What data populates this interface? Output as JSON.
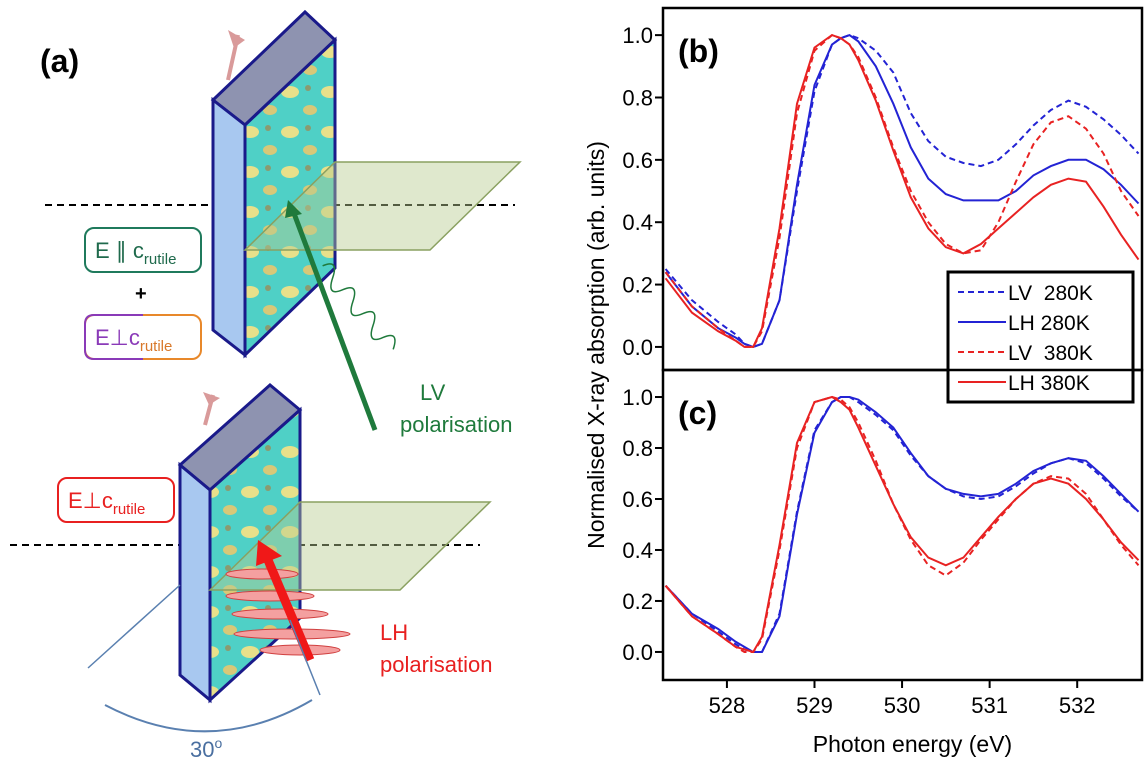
{
  "diagram": {
    "label": "(a)",
    "box1": {
      "main": "E ∥ c",
      "sub": "rutile"
    },
    "plus": "+",
    "box2": {
      "main": "E⊥c",
      "sub": "rutile"
    },
    "box3": {
      "main": "E⊥c",
      "sub": "rutile"
    },
    "lv": {
      "name": "LV",
      "text": "polarisation"
    },
    "lh": {
      "name": "LH",
      "text": "polarisation"
    },
    "angle": {
      "main": "30",
      "sup": "o"
    }
  },
  "chart_data": [
    {
      "type": "line",
      "title": "(b)",
      "y_label": "Normalised X-ray absorption (arb. units)",
      "xlim": [
        527.27,
        532.74
      ],
      "ylim": [
        -0.074,
        1.087
      ],
      "yticks": [
        {
          "value": 0,
          "label": "0.0"
        },
        0.2,
        0.4,
        0.6,
        0.8,
        {
          "value": 1,
          "label": "1.0"
        }
      ],
      "legend": "upper right",
      "x": [
        527.3,
        527.6,
        527.9,
        528.1,
        528.2,
        528.3,
        528.4,
        528.6,
        528.8,
        529.0,
        529.2,
        529.3,
        529.4,
        529.5,
        529.7,
        529.9,
        530.1,
        530.3,
        530.5,
        530.7,
        530.9,
        531.1,
        531.3,
        531.5,
        531.7,
        531.9,
        532.1,
        532.3,
        532.5,
        532.7
      ],
      "series": [
        {
          "name": "LV  280K",
          "color": "#2323d4",
          "dash": true,
          "values": [
            0.25,
            0.15,
            0.08,
            0.04,
            0.01,
            0.0,
            0.01,
            0.15,
            0.5,
            0.82,
            0.97,
            0.99,
            1.0,
            0.99,
            0.95,
            0.88,
            0.75,
            0.66,
            0.61,
            0.59,
            0.58,
            0.6,
            0.65,
            0.71,
            0.76,
            0.79,
            0.77,
            0.73,
            0.68,
            0.62
          ]
        },
        {
          "name": "LH 280K",
          "color": "#2323d4",
          "dash": false,
          "values": [
            0.24,
            0.13,
            0.06,
            0.03,
            0.01,
            0.0,
            0.01,
            0.15,
            0.52,
            0.84,
            0.97,
            0.99,
            1.0,
            0.98,
            0.9,
            0.78,
            0.64,
            0.54,
            0.49,
            0.47,
            0.47,
            0.47,
            0.5,
            0.55,
            0.58,
            0.6,
            0.6,
            0.57,
            0.52,
            0.46
          ]
        },
        {
          "name": "LV  380K",
          "color": "#e82222",
          "dash": true,
          "values": [
            0.24,
            0.13,
            0.06,
            0.02,
            0.0,
            0.0,
            0.05,
            0.35,
            0.75,
            0.95,
            1.0,
            0.99,
            0.97,
            0.93,
            0.8,
            0.64,
            0.5,
            0.4,
            0.33,
            0.3,
            0.31,
            0.4,
            0.53,
            0.65,
            0.72,
            0.74,
            0.7,
            0.62,
            0.5,
            0.42
          ]
        },
        {
          "name": "LH 380K",
          "color": "#e82222",
          "dash": false,
          "values": [
            0.22,
            0.11,
            0.05,
            0.02,
            0.0,
            0.0,
            0.06,
            0.38,
            0.78,
            0.96,
            1.0,
            0.99,
            0.97,
            0.92,
            0.79,
            0.63,
            0.48,
            0.38,
            0.32,
            0.3,
            0.33,
            0.38,
            0.43,
            0.48,
            0.52,
            0.54,
            0.53,
            0.45,
            0.36,
            0.28
          ]
        }
      ]
    },
    {
      "type": "line",
      "title": "(c)",
      "x_label": "Photon energy (eV)",
      "xlim": [
        527.27,
        532.74
      ],
      "ylim": [
        -0.11,
        1.106
      ],
      "xticks": [
        528,
        529,
        530,
        531,
        532
      ],
      "yticks": [
        {
          "value": 0,
          "label": "0.0"
        },
        0.2,
        0.4,
        0.6,
        0.8,
        {
          "value": 1,
          "label": "1.0"
        }
      ],
      "x": [
        527.3,
        527.6,
        527.9,
        528.1,
        528.2,
        528.3,
        528.4,
        528.6,
        528.8,
        529.0,
        529.2,
        529.3,
        529.4,
        529.5,
        529.7,
        529.9,
        530.1,
        530.3,
        530.5,
        530.7,
        530.9,
        531.1,
        531.3,
        531.5,
        531.7,
        531.9,
        532.1,
        532.3,
        532.5,
        532.7
      ],
      "series": [
        {
          "color": "#2323d4",
          "dash": true,
          "values": [
            0.26,
            0.15,
            0.08,
            0.03,
            0.01,
            0.0,
            0.0,
            0.15,
            0.55,
            0.87,
            0.98,
            1.0,
            1.0,
            0.98,
            0.93,
            0.87,
            0.77,
            0.69,
            0.64,
            0.61,
            0.6,
            0.61,
            0.65,
            0.7,
            0.74,
            0.76,
            0.74,
            0.68,
            0.61,
            0.55
          ]
        },
        {
          "color": "#2323d4",
          "dash": false,
          "values": [
            0.26,
            0.15,
            0.09,
            0.04,
            0.02,
            0.0,
            0.0,
            0.14,
            0.54,
            0.86,
            0.98,
            1.0,
            1.0,
            0.99,
            0.94,
            0.88,
            0.78,
            0.69,
            0.64,
            0.62,
            0.61,
            0.62,
            0.66,
            0.71,
            0.74,
            0.76,
            0.75,
            0.69,
            0.62,
            0.55
          ]
        },
        {
          "color": "#e82222",
          "dash": true,
          "values": [
            0.26,
            0.14,
            0.07,
            0.02,
            0.0,
            0.0,
            0.05,
            0.4,
            0.8,
            0.98,
            1.0,
            0.99,
            0.96,
            0.9,
            0.75,
            0.58,
            0.44,
            0.34,
            0.3,
            0.35,
            0.44,
            0.52,
            0.6,
            0.66,
            0.69,
            0.68,
            0.62,
            0.52,
            0.42,
            0.34
          ]
        },
        {
          "color": "#e82222",
          "dash": false,
          "values": [
            0.26,
            0.14,
            0.07,
            0.02,
            0.01,
            0.0,
            0.06,
            0.42,
            0.82,
            0.98,
            1.0,
            0.98,
            0.95,
            0.88,
            0.73,
            0.58,
            0.45,
            0.37,
            0.34,
            0.37,
            0.45,
            0.53,
            0.6,
            0.66,
            0.68,
            0.66,
            0.6,
            0.52,
            0.43,
            0.36
          ]
        }
      ]
    }
  ]
}
